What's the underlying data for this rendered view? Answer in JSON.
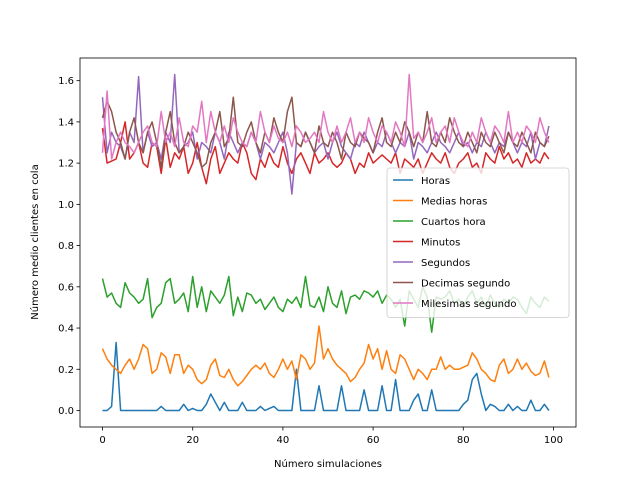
{
  "chart_data": {
    "type": "line",
    "title": "",
    "xlabel": "Número simulaciones",
    "ylabel": "Número medio clientes en cola",
    "xlim": [
      -5,
      105
    ],
    "ylim": [
      -0.08,
      1.71
    ],
    "xticks": [
      0,
      20,
      40,
      60,
      80,
      100
    ],
    "yticks": [
      0.0,
      0.2,
      0.4,
      0.6,
      0.8,
      1.0,
      1.2,
      1.4,
      1.6
    ],
    "xtick_labels": [
      "0",
      "20",
      "40",
      "60",
      "80",
      "100"
    ],
    "ytick_labels": [
      "0.0",
      "0.2",
      "0.4",
      "0.6",
      "0.8",
      "1.0",
      "1.2",
      "1.4",
      "1.6"
    ],
    "grid": false,
    "legend_position": "center-right",
    "series": [
      {
        "name": "Horas",
        "color": "#1f77b4",
        "values": [
          0,
          0,
          0.02,
          0.33,
          0,
          0,
          0,
          0,
          0,
          0,
          0,
          0,
          0,
          0.02,
          0,
          0,
          0,
          0,
          0.03,
          0,
          0.01,
          0,
          0,
          0.03,
          0.08,
          0.04,
          0,
          0.04,
          0,
          0,
          0,
          0.04,
          0,
          0,
          0,
          0.02,
          0,
          0.01,
          0.02,
          0,
          0,
          0,
          0,
          0.2,
          0,
          0,
          0,
          0,
          0.12,
          0,
          0,
          0,
          0,
          0.12,
          0,
          0,
          0,
          0,
          0.1,
          0,
          0,
          0,
          0.12,
          0,
          0,
          0.15,
          0,
          0,
          0,
          0.05,
          0.08,
          0,
          0,
          0.1,
          0,
          0,
          0,
          0,
          0,
          0,
          0.03,
          0.05,
          0.15,
          0.18,
          0.08,
          0,
          0.03,
          0.02,
          0,
          0,
          0.03,
          0,
          0.02,
          0,
          0,
          0.05,
          0,
          0,
          0.03,
          0
        ]
      },
      {
        "name": "Medias horas",
        "color": "#ff7f0e",
        "values": [
          0.3,
          0.25,
          0.22,
          0.2,
          0.18,
          0.22,
          0.25,
          0.2,
          0.25,
          0.32,
          0.3,
          0.18,
          0.2,
          0.28,
          0.26,
          0.18,
          0.27,
          0.27,
          0.18,
          0.22,
          0.2,
          0.15,
          0.13,
          0.15,
          0.22,
          0.25,
          0.17,
          0.16,
          0.2,
          0.15,
          0.12,
          0.14,
          0.17,
          0.2,
          0.22,
          0.2,
          0.23,
          0.18,
          0.16,
          0.2,
          0.25,
          0.2,
          0.24,
          0.15,
          0.27,
          0.25,
          0.2,
          0.23,
          0.41,
          0.25,
          0.3,
          0.25,
          0.22,
          0.2,
          0.18,
          0.14,
          0.16,
          0.2,
          0.23,
          0.32,
          0.25,
          0.3,
          0.2,
          0.29,
          0.2,
          0.18,
          0.27,
          0.25,
          0.2,
          0.15,
          0.2,
          0.18,
          0.15,
          0.2,
          0.2,
          0.26,
          0.2,
          0.22,
          0.2,
          0.2,
          0.21,
          0.22,
          0.28,
          0.25,
          0.2,
          0.18,
          0.15,
          0.14,
          0.22,
          0.25,
          0.18,
          0.2,
          0.25,
          0.2,
          0.23,
          0.19,
          0.17,
          0.18,
          0.24,
          0.16
        ]
      },
      {
        "name": "Cuartos hora",
        "color": "#2ca02c",
        "values": [
          0.64,
          0.55,
          0.57,
          0.52,
          0.5,
          0.62,
          0.57,
          0.55,
          0.52,
          0.54,
          0.64,
          0.45,
          0.5,
          0.52,
          0.62,
          0.64,
          0.52,
          0.54,
          0.57,
          0.48,
          0.65,
          0.5,
          0.6,
          0.48,
          0.58,
          0.55,
          0.52,
          0.56,
          0.65,
          0.46,
          0.55,
          0.48,
          0.57,
          0.56,
          0.52,
          0.54,
          0.49,
          0.52,
          0.55,
          0.5,
          0.48,
          0.54,
          0.52,
          0.55,
          0.5,
          0.65,
          0.51,
          0.5,
          0.55,
          0.48,
          0.6,
          0.52,
          0.5,
          0.58,
          0.47,
          0.55,
          0.56,
          0.54,
          0.58,
          0.57,
          0.55,
          0.58,
          0.52,
          0.56,
          0.54,
          0.5,
          0.54,
          0.41,
          0.58,
          0.54,
          0.5,
          0.6,
          0.55,
          0.38,
          0.55,
          0.54,
          0.55,
          0.58,
          0.52,
          0.54,
          0.5,
          0.55,
          0.58,
          0.52,
          0.55,
          0.5,
          0.56,
          0.52,
          0.5,
          0.54,
          0.52,
          0.55,
          0.54,
          0.5,
          0.47,
          0.55,
          0.52,
          0.5,
          0.55,
          0.53
        ]
      },
      {
        "name": "Minutos",
        "color": "#d62728",
        "values": [
          1.37,
          1.2,
          1.21,
          1.22,
          1.3,
          1.4,
          1.22,
          1.25,
          1.3,
          1.2,
          1.18,
          1.3,
          1.28,
          1.15,
          1.32,
          1.18,
          1.25,
          1.22,
          1.28,
          1.15,
          1.2,
          1.3,
          1.18,
          1.1,
          1.22,
          1.28,
          1.15,
          1.2,
          1.25,
          1.22,
          1.2,
          1.3,
          1.25,
          1.15,
          1.12,
          1.22,
          1.18,
          1.25,
          1.2,
          1.18,
          1.28,
          1.2,
          1.15,
          1.22,
          1.25,
          1.2,
          1.15,
          1.25,
          1.2,
          1.22,
          1.25,
          1.2,
          1.18,
          1.2,
          1.25,
          1.22,
          1.15,
          1.2,
          1.18,
          1.25,
          1.2,
          1.22,
          1.24,
          1.22,
          1.2,
          1.25,
          1.15,
          1.22,
          1.2,
          1.18,
          1.22,
          1.15,
          1.2,
          1.25,
          1.22,
          1.2,
          1.25,
          1.18,
          1.15,
          1.2,
          1.22,
          1.25,
          1.18,
          1.2,
          1.15,
          1.25,
          1.22,
          1.2,
          1.28,
          1.22,
          1.25,
          1.2,
          1.22,
          1.18,
          1.25,
          1.2,
          1.22,
          1.2,
          1.25,
          1.22
        ]
      },
      {
        "name": "Segundos",
        "color": "#9467bd",
        "values": [
          1.52,
          1.25,
          1.35,
          1.3,
          1.28,
          1.22,
          1.35,
          1.3,
          1.62,
          1.25,
          1.35,
          1.28,
          1.3,
          1.22,
          1.35,
          1.3,
          1.63,
          1.25,
          1.28,
          1.3,
          1.35,
          1.22,
          1.3,
          1.28,
          1.25,
          1.35,
          1.3,
          1.22,
          1.35,
          1.3,
          1.25,
          1.3,
          1.28,
          1.35,
          1.3,
          1.22,
          1.3,
          1.28,
          1.25,
          1.3,
          1.35,
          1.25,
          1.05,
          1.3,
          1.28,
          1.35,
          1.3,
          1.25,
          1.28,
          1.3,
          1.22,
          1.3,
          1.35,
          1.28,
          1.25,
          1.22,
          1.3,
          1.28,
          1.35,
          1.3,
          1.25,
          1.3,
          1.28,
          1.35,
          1.3,
          1.25,
          1.3,
          1.28,
          1.35,
          1.22,
          1.3,
          1.28,
          1.25,
          1.3,
          1.35,
          1.3,
          1.28,
          1.25,
          1.3,
          1.35,
          1.28,
          1.3,
          1.25,
          1.3,
          1.28,
          1.35,
          1.3,
          1.25,
          1.3,
          1.28,
          1.35,
          1.3,
          1.25,
          1.3,
          1.28,
          1.35,
          1.22,
          1.3,
          1.28,
          1.38
        ]
      },
      {
        "name": "Decimas segundo",
        "color": "#8c564b",
        "values": [
          1.42,
          1.5,
          1.45,
          1.35,
          1.3,
          1.22,
          1.35,
          1.42,
          1.3,
          1.25,
          1.35,
          1.4,
          1.3,
          1.18,
          1.35,
          1.45,
          1.3,
          1.25,
          1.28,
          1.35,
          1.3,
          1.25,
          1.18,
          1.2,
          1.3,
          1.35,
          1.45,
          1.28,
          1.32,
          1.52,
          1.3,
          1.28,
          1.35,
          1.4,
          1.3,
          1.25,
          1.35,
          1.3,
          1.42,
          1.35,
          1.3,
          1.45,
          1.52,
          1.3,
          1.28,
          1.35,
          1.3,
          1.25,
          1.38,
          1.3,
          1.28,
          1.35,
          1.3,
          1.22,
          1.35,
          1.3,
          1.28,
          1.35,
          1.32,
          1.3,
          1.25,
          1.35,
          1.42,
          1.3,
          1.28,
          1.35,
          1.3,
          1.4,
          1.35,
          1.28,
          1.35,
          1.3,
          1.45,
          1.3,
          1.28,
          1.35,
          1.3,
          1.42,
          1.35,
          1.3,
          1.28,
          1.35,
          1.3,
          1.25,
          1.35,
          1.3,
          1.28,
          1.35,
          1.3,
          1.25,
          1.35,
          1.3,
          1.28,
          1.35,
          1.3,
          1.25,
          1.35,
          1.3,
          1.28,
          1.33
        ]
      },
      {
        "name": "Milesimas segundo",
        "color": "#e377c2",
        "values": [
          1.25,
          1.55,
          1.22,
          1.3,
          1.35,
          1.3,
          1.28,
          1.25,
          1.3,
          1.35,
          1.38,
          1.3,
          1.28,
          1.45,
          1.3,
          1.35,
          1.28,
          1.42,
          1.3,
          1.28,
          1.38,
          1.35,
          1.5,
          1.3,
          1.45,
          1.35,
          1.3,
          1.38,
          1.3,
          1.42,
          1.35,
          1.3,
          1.28,
          1.35,
          1.3,
          1.45,
          1.35,
          1.3,
          1.38,
          1.32,
          1.3,
          1.35,
          1.28,
          1.38,
          1.35,
          1.3,
          1.32,
          1.35,
          1.3,
          1.45,
          1.35,
          1.3,
          1.38,
          1.3,
          1.35,
          1.42,
          1.3,
          1.35,
          1.3,
          1.42,
          1.35,
          1.3,
          1.38,
          1.35,
          1.3,
          1.4,
          1.35,
          1.28,
          1.63,
          1.32,
          1.35,
          1.3,
          1.35,
          1.42,
          1.3,
          1.35,
          1.38,
          1.3,
          1.42,
          1.35,
          1.3,
          1.28,
          1.35,
          1.3,
          1.42,
          1.35,
          1.3,
          1.38,
          1.35,
          1.3,
          1.45,
          1.3,
          1.35,
          1.3,
          1.38,
          1.35,
          1.3,
          1.42,
          1.35,
          1.3
        ]
      }
    ]
  }
}
